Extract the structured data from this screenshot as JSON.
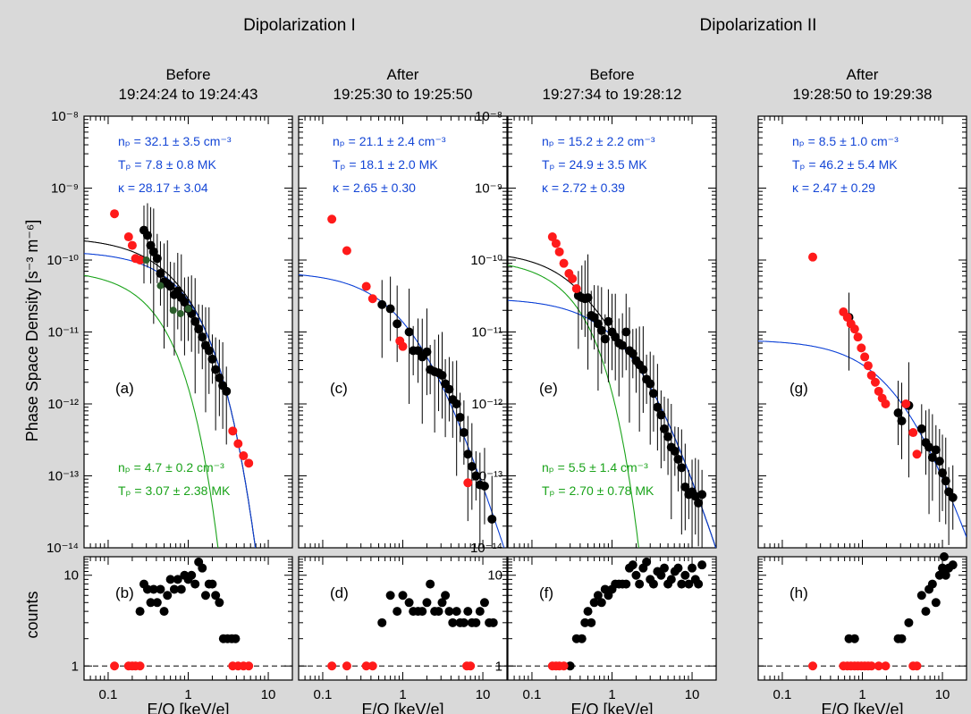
{
  "group_titles": [
    "Dipolarization I",
    "Dipolarization II"
  ],
  "ylabel_top": "Phase Space Density [s⁻³ m⁻⁶]",
  "ylabel_bottom": "counts",
  "xlabel": "E/Q [keV/e]",
  "colors": {
    "background": "#d9d9d9",
    "kappa": "#0a3fd6",
    "total": "#000000",
    "maxwell": "#1aa31a",
    "excluded": "#ff1a1a",
    "data": "#000000",
    "text_blue": "#1446d6",
    "text_green": "#1aa31a"
  },
  "chart_data": [
    {
      "type": "scatter",
      "panel": "Before 19:24:24 to 19:24:43",
      "title_line1": "Before",
      "title_line2": "19:24:24 to 19:24:43",
      "top_label": "(a)",
      "bottom_label": "(b)",
      "x_scale": "log",
      "xlim": [
        0.05,
        20
      ],
      "y_scale": "log",
      "ylim": [
        1e-14,
        1e-08
      ],
      "x_ticks": [
        "0.1",
        "1",
        "10"
      ],
      "y_ticks": [
        "10⁻⁸",
        "10⁻⁹",
        "10⁻¹⁰",
        "10⁻¹¹",
        "10⁻¹²",
        "10⁻¹³",
        "10⁻¹⁴"
      ],
      "annotation_blue": [
        "nₚ = 32.1 ± 3.5 cm⁻³",
        "Tₚ = 7.8 ± 0.8 MK",
        "κ = 28.17 ± 3.04"
      ],
      "annotation_green": [
        "nₚ = 4.7 ± 0.2 cm⁻³",
        "Tₚ = 3.07 ± 2.38 MK"
      ],
      "kappa_fit": {
        "n": 32.1,
        "T_MK": 7.8,
        "kappa": 28.17
      },
      "maxwell_fit": {
        "n": 4.7,
        "T_MK": 3.07
      },
      "red_points": [
        [
          0.12,
          4.4e-10
        ],
        [
          0.18,
          2.1e-10
        ],
        [
          0.2,
          1.6e-10
        ],
        [
          0.22,
          1.05e-10
        ],
        [
          0.25,
          1e-10
        ],
        [
          3.6,
          4.2e-13
        ],
        [
          4.2,
          2.8e-13
        ],
        [
          4.9,
          1.9e-13
        ],
        [
          5.7,
          1.5e-13
        ]
      ],
      "black_points": [
        [
          0.28,
          2.6e-10
        ],
        [
          0.31,
          2.2e-10
        ],
        [
          0.34,
          1.6e-10
        ],
        [
          0.37,
          1.3e-10
        ],
        [
          0.41,
          1.05e-10
        ],
        [
          0.45,
          6.5e-11
        ],
        [
          0.5,
          5e-11
        ],
        [
          0.55,
          4.7e-11
        ],
        [
          0.6,
          4.3e-11
        ],
        [
          0.67,
          3.3e-11
        ],
        [
          0.74,
          3.7e-11
        ],
        [
          0.82,
          3e-11
        ],
        [
          0.9,
          2.6e-11
        ],
        [
          1.0,
          2.1e-11
        ],
        [
          1.1,
          1.8e-11
        ],
        [
          1.22,
          1.4e-11
        ],
        [
          1.35,
          1.1e-11
        ],
        [
          1.5,
          8.5e-12
        ],
        [
          1.65,
          6.5e-12
        ],
        [
          1.82,
          5.5e-12
        ],
        [
          2.0,
          4.2e-12
        ],
        [
          2.2,
          3e-12
        ],
        [
          2.45,
          2.3e-12
        ],
        [
          2.7,
          1.8e-12
        ],
        [
          3.0,
          1.5e-12
        ]
      ],
      "green_points": [
        [
          0.3,
          1e-10
        ],
        [
          0.45,
          4.4e-11
        ],
        [
          0.65,
          2e-11
        ],
        [
          0.8,
          1.8e-11
        ],
        [
          1.0,
          2.1e-11
        ]
      ],
      "counts_ylim": [
        0.7,
        16
      ],
      "counts_ticks": [
        "1",
        "10"
      ],
      "counts_black": [
        [
          0.25,
          4
        ],
        [
          0.28,
          8
        ],
        [
          0.31,
          7
        ],
        [
          0.34,
          5
        ],
        [
          0.37,
          7
        ],
        [
          0.41,
          5
        ],
        [
          0.45,
          7
        ],
        [
          0.5,
          4
        ],
        [
          0.55,
          6
        ],
        [
          0.6,
          9
        ],
        [
          0.67,
          7
        ],
        [
          0.74,
          9
        ],
        [
          0.82,
          7
        ],
        [
          0.9,
          10
        ],
        [
          1.0,
          9
        ],
        [
          1.1,
          10
        ],
        [
          1.22,
          8
        ],
        [
          1.35,
          14
        ],
        [
          1.5,
          12
        ],
        [
          1.65,
          6
        ],
        [
          1.82,
          8
        ],
        [
          2.0,
          8
        ],
        [
          2.2,
          6
        ],
        [
          2.45,
          5
        ],
        [
          2.75,
          2
        ],
        [
          3.1,
          2
        ],
        [
          3.5,
          2
        ],
        [
          3.9,
          2
        ]
      ],
      "counts_red": [
        [
          0.12,
          1
        ],
        [
          0.18,
          1
        ],
        [
          0.2,
          1
        ],
        [
          0.22,
          1
        ],
        [
          0.25,
          1
        ],
        [
          3.6,
          1
        ],
        [
          4.2,
          1
        ],
        [
          4.9,
          1
        ],
        [
          5.7,
          1
        ]
      ]
    },
    {
      "type": "scatter",
      "panel": "After 19:25:30 to 19:25:50",
      "title_line1": "After",
      "title_line2": "19:25:30 to 19:25:50",
      "top_label": "(c)",
      "bottom_label": "(d)",
      "x_scale": "log",
      "xlim": [
        0.05,
        20
      ],
      "y_scale": "log",
      "ylim": [
        1e-14,
        1e-08
      ],
      "x_ticks": [
        "0.1",
        "1",
        "10"
      ],
      "annotation_blue": [
        "nₚ = 21.1 ± 2.4 cm⁻³",
        "Tₚ = 18.1 ± 2.0 MK",
        "κ = 2.65 ± 0.30"
      ],
      "annotation_green": [],
      "kappa_fit": {
        "n": 21.1,
        "T_MK": 18.1,
        "kappa": 2.65
      },
      "maxwell_fit": null,
      "red_points": [
        [
          0.13,
          3.7e-10
        ],
        [
          0.2,
          1.35e-10
        ],
        [
          0.35,
          4.3e-11
        ],
        [
          0.42,
          2.9e-11
        ],
        [
          0.92,
          7.5e-12
        ],
        [
          1.0,
          6.3e-12
        ],
        [
          6.5,
          8e-14
        ]
      ],
      "black_points": [
        [
          0.55,
          2.4e-11
        ],
        [
          0.7,
          2.1e-11
        ],
        [
          0.85,
          1.3e-11
        ],
        [
          1.2,
          1e-11
        ],
        [
          1.35,
          5.5e-12
        ],
        [
          1.55,
          5.5e-12
        ],
        [
          1.75,
          4.5e-12
        ],
        [
          2.0,
          5.3e-12
        ],
        [
          2.2,
          3e-12
        ],
        [
          2.5,
          2.8e-12
        ],
        [
          2.8,
          2.7e-12
        ],
        [
          3.1,
          2.5e-12
        ],
        [
          3.4,
          1.9e-12
        ],
        [
          3.8,
          1.6e-12
        ],
        [
          4.2,
          1.15e-12
        ],
        [
          4.7,
          1e-12
        ],
        [
          5.2,
          6.5e-13
        ],
        [
          5.8,
          4e-13
        ],
        [
          6.5,
          2e-13
        ],
        [
          7.3,
          1.35e-13
        ],
        [
          8.2,
          1e-13
        ],
        [
          9.2,
          7.5e-14
        ],
        [
          10.5,
          7.2e-14
        ],
        [
          13,
          2.5e-14
        ]
      ],
      "green_points": [],
      "counts_ylim": [
        0.7,
        16
      ],
      "counts_ticks": [
        "1",
        "10"
      ],
      "counts_black": [
        [
          0.55,
          3
        ],
        [
          0.7,
          6
        ],
        [
          0.85,
          4
        ],
        [
          1.0,
          6
        ],
        [
          1.2,
          5
        ],
        [
          1.35,
          4
        ],
        [
          1.55,
          4
        ],
        [
          1.75,
          4
        ],
        [
          2.0,
          5
        ],
        [
          2.2,
          8
        ],
        [
          2.5,
          4
        ],
        [
          2.8,
          4
        ],
        [
          3.1,
          5
        ],
        [
          3.4,
          6
        ],
        [
          3.8,
          4
        ],
        [
          4.2,
          3
        ],
        [
          4.7,
          4
        ],
        [
          5.2,
          3
        ],
        [
          5.8,
          3
        ],
        [
          6.5,
          4
        ],
        [
          7.3,
          3
        ],
        [
          8.2,
          3
        ],
        [
          9.2,
          4
        ],
        [
          10.5,
          5
        ],
        [
          12,
          3
        ],
        [
          13.5,
          3
        ]
      ],
      "counts_red": [
        [
          0.13,
          1
        ],
        [
          0.2,
          1
        ],
        [
          0.35,
          1
        ],
        [
          0.42,
          1
        ],
        [
          6.3,
          1
        ],
        [
          7,
          1
        ]
      ]
    },
    {
      "type": "scatter",
      "panel": "Before 19:27:34 to 19:28:12",
      "title_line1": "Before",
      "title_line2": "19:27:34 to 19:28:12",
      "top_label": "(e)",
      "bottom_label": "(f)",
      "x_scale": "log",
      "xlim": [
        0.05,
        20
      ],
      "y_scale": "log",
      "ylim": [
        1e-14,
        1e-08
      ],
      "x_ticks": [
        "0.1",
        "1",
        "10"
      ],
      "y_ticks": [
        "10⁻⁸",
        "10⁻⁹",
        "10⁻¹⁰",
        "10⁻¹¹",
        "10⁻¹²",
        "10⁻¹³",
        "10⁻¹⁴"
      ],
      "annotation_blue": [
        "nₚ = 15.2 ± 2.2 cm⁻³",
        "Tₚ = 24.9 ± 3.5 MK",
        "κ = 2.72 ± 0.39"
      ],
      "annotation_green": [
        "nₚ = 5.5 ± 1.4 cm⁻³",
        "Tₚ = 2.70 ± 0.78 MK"
      ],
      "kappa_fit": {
        "n": 15.2,
        "T_MK": 24.9,
        "kappa": 2.72
      },
      "maxwell_fit": {
        "n": 5.5,
        "T_MK": 2.7
      },
      "red_points": [
        [
          0.18,
          2.1e-10
        ],
        [
          0.2,
          1.7e-10
        ],
        [
          0.22,
          1.3e-10
        ],
        [
          0.25,
          9e-11
        ],
        [
          0.29,
          6.5e-11
        ],
        [
          0.32,
          5.5e-11
        ],
        [
          0.36,
          4e-11
        ]
      ],
      "black_points": [
        [
          0.38,
          3.2e-11
        ],
        [
          0.42,
          3e-11
        ],
        [
          0.46,
          2.9e-11
        ],
        [
          0.5,
          3e-11
        ],
        [
          0.55,
          1.7e-11
        ],
        [
          0.6,
          1.6e-11
        ],
        [
          0.67,
          1.3e-11
        ],
        [
          0.74,
          1.05e-11
        ],
        [
          0.82,
          8e-12
        ],
        [
          0.9,
          1.4e-11
        ],
        [
          1.0,
          1e-11
        ],
        [
          1.1,
          8.5e-12
        ],
        [
          1.22,
          7e-12
        ],
        [
          1.35,
          6.5e-12
        ],
        [
          1.5,
          1e-11
        ],
        [
          1.65,
          5.5e-12
        ],
        [
          1.82,
          5e-12
        ],
        [
          2.0,
          4e-12
        ],
        [
          2.2,
          3.5e-12
        ],
        [
          2.45,
          3e-12
        ],
        [
          2.7,
          2.2e-12
        ],
        [
          3.0,
          1.9e-12
        ],
        [
          3.3,
          1.4e-12
        ],
        [
          3.7,
          9e-13
        ],
        [
          4.1,
          7e-13
        ],
        [
          4.5,
          4.5e-13
        ],
        [
          5.0,
          3.5e-13
        ],
        [
          5.5,
          2.5e-13
        ],
        [
          6.1,
          2.2e-13
        ],
        [
          6.7,
          1.7e-13
        ],
        [
          7.4,
          1.3e-13
        ],
        [
          8.2,
          7e-14
        ],
        [
          9.1,
          5.5e-14
        ],
        [
          10,
          6e-14
        ],
        [
          11,
          5.2e-14
        ],
        [
          12,
          4.2e-14
        ],
        [
          13.3,
          5.5e-14
        ]
      ],
      "green_points": [],
      "counts_ylim": [
        0.7,
        16
      ],
      "counts_ticks": [
        "1",
        "10"
      ],
      "counts_black": [
        [
          0.3,
          1
        ],
        [
          0.36,
          2
        ],
        [
          0.42,
          2
        ],
        [
          0.46,
          3
        ],
        [
          0.5,
          4
        ],
        [
          0.55,
          3
        ],
        [
          0.6,
          5
        ],
        [
          0.67,
          6
        ],
        [
          0.74,
          5
        ],
        [
          0.82,
          7
        ],
        [
          0.9,
          6
        ],
        [
          1.0,
          7
        ],
        [
          1.1,
          8
        ],
        [
          1.22,
          8
        ],
        [
          1.35,
          8
        ],
        [
          1.5,
          8
        ],
        [
          1.65,
          12
        ],
        [
          1.82,
          13
        ],
        [
          2.0,
          10
        ],
        [
          2.2,
          8
        ],
        [
          2.45,
          12
        ],
        [
          2.7,
          14
        ],
        [
          3.0,
          9
        ],
        [
          3.3,
          8
        ],
        [
          3.7,
          11
        ],
        [
          4.1,
          10
        ],
        [
          4.5,
          12
        ],
        [
          5.0,
          8
        ],
        [
          5.5,
          9
        ],
        [
          6.1,
          11
        ],
        [
          6.7,
          12
        ],
        [
          7.4,
          8
        ],
        [
          8.2,
          10
        ],
        [
          9.1,
          8
        ],
        [
          10,
          12
        ],
        [
          11,
          9
        ],
        [
          12,
          8
        ],
        [
          13.3,
          13
        ]
      ],
      "counts_red": [
        [
          0.18,
          1
        ],
        [
          0.2,
          1
        ],
        [
          0.22,
          1
        ],
        [
          0.25,
          1
        ]
      ]
    },
    {
      "type": "scatter",
      "panel": "After 19:28:50 to 19:29:38",
      "title_line1": "After",
      "title_line2": "19:28:50 to 19:29:38",
      "top_label": "(g)",
      "bottom_label": "(h)",
      "x_scale": "log",
      "xlim": [
        0.05,
        20
      ],
      "y_scale": "log",
      "ylim": [
        1e-14,
        1e-08
      ],
      "x_ticks": [
        "0.1",
        "1",
        "10"
      ],
      "annotation_blue": [
        "nₚ = 8.5 ± 1.0 cm⁻³",
        "Tₚ = 46.2 ± 5.4 MK",
        "κ = 2.47 ± 0.29"
      ],
      "annotation_green": [],
      "kappa_fit": {
        "n": 8.5,
        "T_MK": 46.2,
        "kappa": 2.47
      },
      "maxwell_fit": null,
      "red_points": [
        [
          0.24,
          1.1e-10
        ],
        [
          0.58,
          1.9e-11
        ],
        [
          0.65,
          1.6e-11
        ],
        [
          0.72,
          1.3e-11
        ],
        [
          0.8,
          1.1e-11
        ],
        [
          0.88,
          8.5e-12
        ],
        [
          0.97,
          6e-12
        ],
        [
          1.07,
          4.5e-12
        ],
        [
          1.18,
          3.4e-12
        ],
        [
          1.3,
          2.5e-12
        ],
        [
          1.45,
          2e-12
        ],
        [
          1.6,
          1.5e-12
        ],
        [
          1.77,
          1.2e-12
        ],
        [
          1.95,
          1e-12
        ],
        [
          3.5,
          1e-12
        ],
        [
          4.3,
          4e-13
        ],
        [
          4.8,
          2e-13
        ]
      ],
      "black_points": [
        [
          0.68,
          1.6e-11
        ],
        [
          2.8,
          7.5e-13
        ],
        [
          3.1,
          5.8e-13
        ],
        [
          3.8,
          9.5e-13
        ],
        [
          5.5,
          4.5e-13
        ],
        [
          6.2,
          2.9e-13
        ],
        [
          6.8,
          2.5e-13
        ],
        [
          7.5,
          1.8e-13
        ],
        [
          8.3,
          2.3e-13
        ],
        [
          9.2,
          1.6e-13
        ],
        [
          10,
          1.1e-13
        ],
        [
          11,
          8.5e-14
        ],
        [
          12,
          6e-14
        ],
        [
          13.5,
          5e-14
        ]
      ],
      "green_points": [],
      "counts_ylim": [
        0.7,
        16
      ],
      "counts_ticks": [
        "1",
        "10"
      ],
      "counts_black": [
        [
          0.68,
          2
        ],
        [
          0.8,
          2
        ],
        [
          2.8,
          2
        ],
        [
          3.1,
          2
        ],
        [
          3.8,
          3
        ],
        [
          5.5,
          6
        ],
        [
          6.2,
          4
        ],
        [
          6.8,
          7
        ],
        [
          7.5,
          8
        ],
        [
          8.3,
          5
        ],
        [
          9.2,
          10
        ],
        [
          10,
          12
        ],
        [
          11,
          10
        ],
        [
          12,
          12
        ],
        [
          13.5,
          13
        ],
        [
          10.5,
          16
        ]
      ],
      "counts_red": [
        [
          0.24,
          1
        ],
        [
          0.58,
          1
        ],
        [
          0.65,
          1
        ],
        [
          0.72,
          1
        ],
        [
          0.8,
          1
        ],
        [
          0.88,
          1
        ],
        [
          0.97,
          1
        ],
        [
          1.07,
          1
        ],
        [
          1.18,
          1
        ],
        [
          1.3,
          1
        ],
        [
          1.6,
          1
        ],
        [
          1.95,
          1
        ],
        [
          4.3,
          1
        ],
        [
          4.8,
          1
        ]
      ]
    }
  ]
}
